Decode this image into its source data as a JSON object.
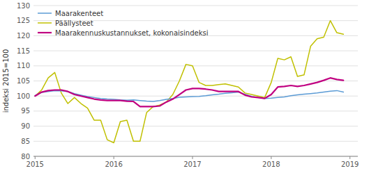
{
  "chart_data": {
    "type": "line",
    "ylabel": "indeksi 2015=100",
    "x": [
      2015,
      2015.0833,
      2015.1667,
      2015.25,
      2015.3333,
      2015.4167,
      2015.5,
      2015.5833,
      2015.6667,
      2015.75,
      2015.8333,
      2015.9167,
      2016,
      2016.0833,
      2016.1667,
      2016.25,
      2016.3333,
      2016.4167,
      2016.5,
      2016.5833,
      2016.6667,
      2016.75,
      2016.8333,
      2016.9167,
      2017,
      2017.0833,
      2017.1667,
      2017.25,
      2017.3333,
      2017.4167,
      2017.5,
      2017.5833,
      2017.6667,
      2017.75,
      2017.8333,
      2017.9167,
      2018,
      2018.0833,
      2018.1667,
      2018.25,
      2018.3333,
      2018.4167,
      2018.5,
      2018.5833,
      2018.6667,
      2018.75,
      2018.8333,
      2018.9167
    ],
    "xlim": [
      2014.98,
      2019.1
    ],
    "xticks": [
      2015,
      2016,
      2017,
      2018,
      2019
    ],
    "ylim": [
      80,
      130
    ],
    "yticks": [
      80,
      85,
      90,
      95,
      100,
      105,
      110,
      115,
      120,
      125,
      130
    ],
    "grid": true,
    "legend": "upper left",
    "series": [
      {
        "name": "Maarakenteet",
        "color": "#5b9bd5",
        "values": [
          100.2,
          101.2,
          101.5,
          101.8,
          101.7,
          101.5,
          100.8,
          100.3,
          99.8,
          99.5,
          99.2,
          99.0,
          98.9,
          98.7,
          98.6,
          98.7,
          98.5,
          98.3,
          98.2,
          98.5,
          98.9,
          99.2,
          99.6,
          99.7,
          99.8,
          99.9,
          100.1,
          100.4,
          100.6,
          100.9,
          101.1,
          101.3,
          100.6,
          99.9,
          99.5,
          99.2,
          99.3,
          99.5,
          99.7,
          100.1,
          100.4,
          100.6,
          100.8,
          101.0,
          101.3,
          101.6,
          101.8,
          101.3
        ]
      },
      {
        "name": "Päällysteet",
        "color": "#c0c000",
        "values": [
          100.0,
          102.0,
          106.0,
          107.8,
          101.0,
          97.5,
          99.5,
          97.5,
          96.0,
          92.0,
          92.0,
          85.5,
          84.5,
          91.5,
          92.0,
          85.0,
          85.0,
          94.5,
          96.5,
          97.0,
          98.0,
          100.5,
          105.0,
          110.5,
          110.0,
          104.5,
          103.5,
          103.5,
          103.8,
          104.0,
          103.5,
          103.0,
          101.0,
          100.5,
          100.0,
          99.5,
          104.5,
          112.5,
          112.0,
          113.0,
          106.5,
          107.0,
          116.5,
          119.0,
          119.5,
          125.0,
          121.0,
          120.5
        ]
      },
      {
        "name": "Maarakennuskustannukset, kokonaisindeksi",
        "color": "#c00080",
        "values": [
          100.0,
          101.3,
          101.8,
          102.0,
          102.0,
          101.5,
          100.5,
          100.0,
          99.5,
          99.0,
          98.7,
          98.5,
          98.5,
          98.5,
          98.3,
          98.2,
          96.5,
          96.5,
          96.5,
          96.7,
          98.0,
          99.0,
          100.5,
          102.0,
          102.5,
          102.5,
          102.3,
          102.0,
          101.5,
          101.5,
          101.5,
          101.5,
          100.3,
          99.7,
          99.5,
          99.2,
          100.5,
          103.0,
          103.2,
          103.5,
          103.2,
          103.5,
          104.0,
          104.5,
          105.2,
          106.0,
          105.5,
          105.2
        ]
      }
    ]
  }
}
